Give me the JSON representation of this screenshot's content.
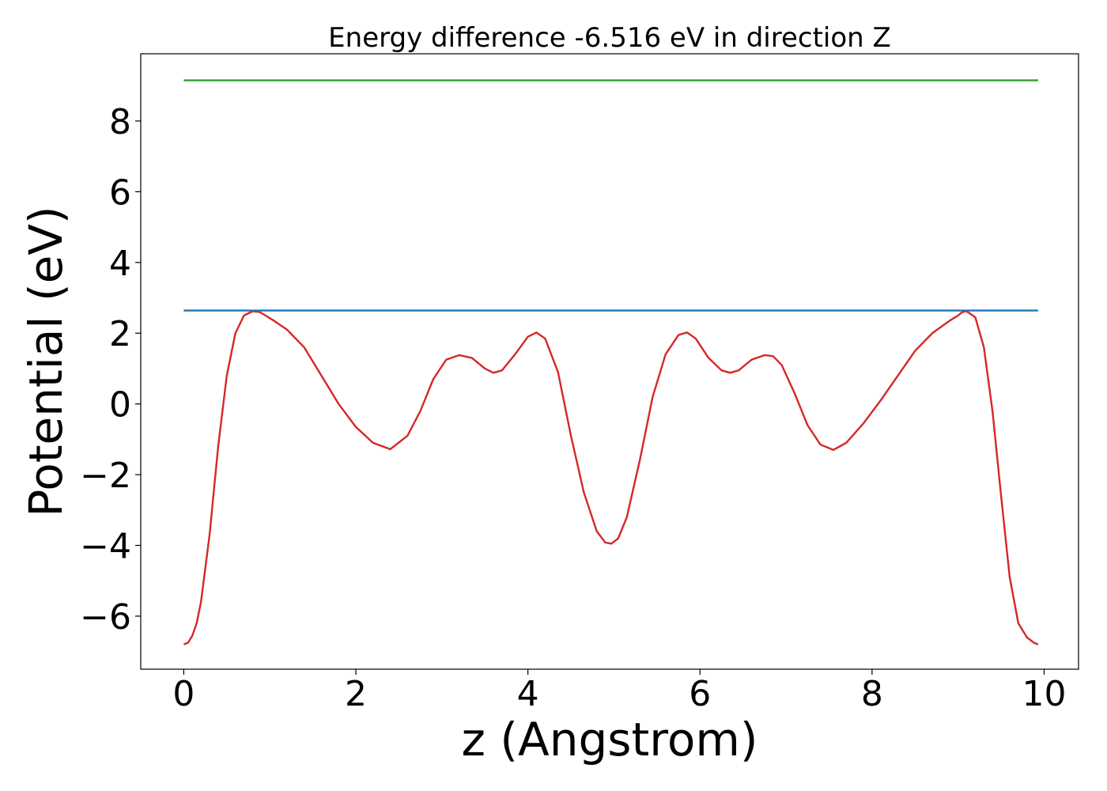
{
  "chart_data": {
    "type": "line",
    "title": "Energy difference -6.516 eV in direction Z",
    "xlabel": "z (Angstrom)",
    "ylabel": "Potential (eV)",
    "xlim": [
      -0.5,
      10.4
    ],
    "ylim": [
      -7.5,
      9.9
    ],
    "x_ticks": [
      0,
      2,
      4,
      6,
      8,
      10
    ],
    "x_tick_labels": [
      "0",
      "2",
      "4",
      "6",
      "8",
      "10"
    ],
    "y_ticks": [
      -6,
      -4,
      -2,
      0,
      2,
      4,
      6,
      8
    ],
    "y_tick_labels": [
      "−6",
      "−4",
      "−2",
      "0",
      "2",
      "4",
      "6",
      "8"
    ],
    "grid": false,
    "series": [
      {
        "color": "#d62728",
        "x": [
          0,
          0.05,
          0.1,
          0.15,
          0.2,
          0.3,
          0.4,
          0.5,
          0.6,
          0.7,
          0.8,
          0.88,
          0.95,
          1.05,
          1.2,
          1.4,
          1.6,
          1.8,
          2.0,
          2.2,
          2.4,
          2.6,
          2.75,
          2.9,
          3.05,
          3.2,
          3.35,
          3.5,
          3.6,
          3.7,
          3.85,
          4.0,
          4.1,
          4.2,
          4.35,
          4.5,
          4.65,
          4.8,
          4.9,
          4.97,
          5.05,
          5.15,
          5.3,
          5.45,
          5.6,
          5.75,
          5.85,
          5.95,
          6.1,
          6.25,
          6.35,
          6.45,
          6.6,
          6.75,
          6.85,
          6.95,
          7.1,
          7.25,
          7.4,
          7.55,
          7.7,
          7.9,
          8.1,
          8.3,
          8.5,
          8.7,
          8.9,
          9.0,
          9.05,
          9.1,
          9.2,
          9.3,
          9.4,
          9.5,
          9.6,
          9.7,
          9.8,
          9.88,
          9.93
        ],
        "y": [
          -6.8,
          -6.75,
          -6.55,
          -6.2,
          -5.6,
          -3.7,
          -1.2,
          0.8,
          2.0,
          2.5,
          2.62,
          2.6,
          2.5,
          2.35,
          2.1,
          1.6,
          0.8,
          0.0,
          -0.65,
          -1.1,
          -1.28,
          -0.9,
          -0.2,
          0.7,
          1.25,
          1.38,
          1.3,
          1.0,
          0.88,
          0.95,
          1.4,
          1.9,
          2.02,
          1.85,
          0.9,
          -0.9,
          -2.5,
          -3.6,
          -3.92,
          -3.95,
          -3.8,
          -3.2,
          -1.6,
          0.2,
          1.4,
          1.95,
          2.02,
          1.85,
          1.3,
          0.95,
          0.88,
          0.95,
          1.25,
          1.38,
          1.35,
          1.1,
          0.3,
          -0.6,
          -1.15,
          -1.3,
          -1.1,
          -0.55,
          0.1,
          0.8,
          1.5,
          2.0,
          2.35,
          2.5,
          2.6,
          2.62,
          2.45,
          1.6,
          -0.2,
          -2.6,
          -4.9,
          -6.2,
          -6.6,
          -6.75,
          -6.8
        ]
      },
      {
        "color": "#1f77b4",
        "x": [
          0,
          9.93
        ],
        "y": [
          2.64,
          2.64
        ]
      },
      {
        "color": "#2ca02c",
        "x": [
          0,
          9.93
        ],
        "y": [
          9.15,
          9.15
        ]
      }
    ]
  }
}
